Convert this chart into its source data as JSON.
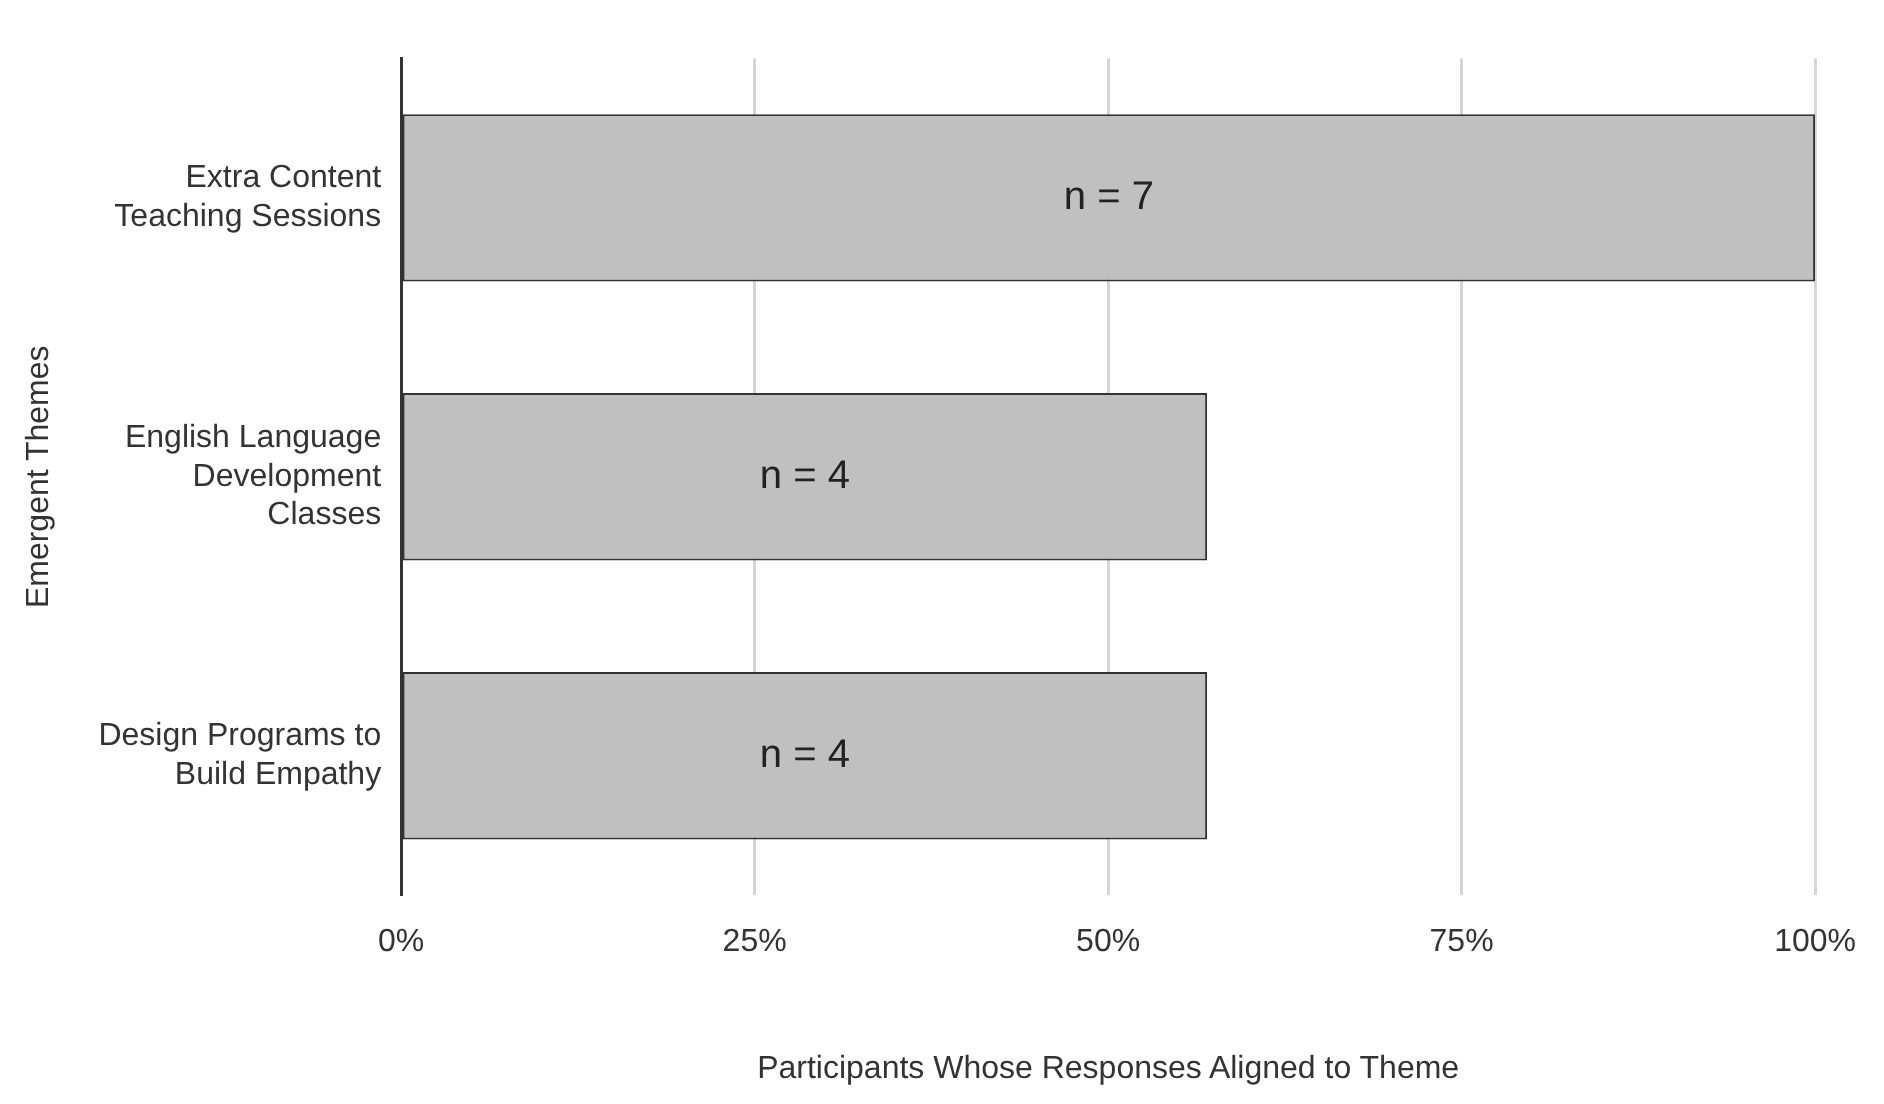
{
  "chart_data": {
    "type": "bar",
    "orientation": "horizontal",
    "xlabel": "Participants Whose Responses Aligned to Theme",
    "ylabel": "Emergent Themes",
    "categories": [
      "Extra Content Teaching Sessions",
      "English Language Development Classes",
      "Design Programs to Build Empathy"
    ],
    "values": [
      100,
      57,
      57
    ],
    "color": "#c0c0c0",
    "annotations": [
      "n = 7",
      "n = 4",
      "n = 4"
    ],
    "xlim": [
      0,
      100
    ],
    "xticks": [
      {
        "value": 0,
        "label": "0%"
      },
      {
        "value": 25,
        "label": "25%"
      },
      {
        "value": 50,
        "label": "50%"
      },
      {
        "value": 75,
        "label": "75%"
      },
      {
        "value": 100,
        "label": "100%"
      }
    ],
    "grid": "x",
    "legend": false
  }
}
